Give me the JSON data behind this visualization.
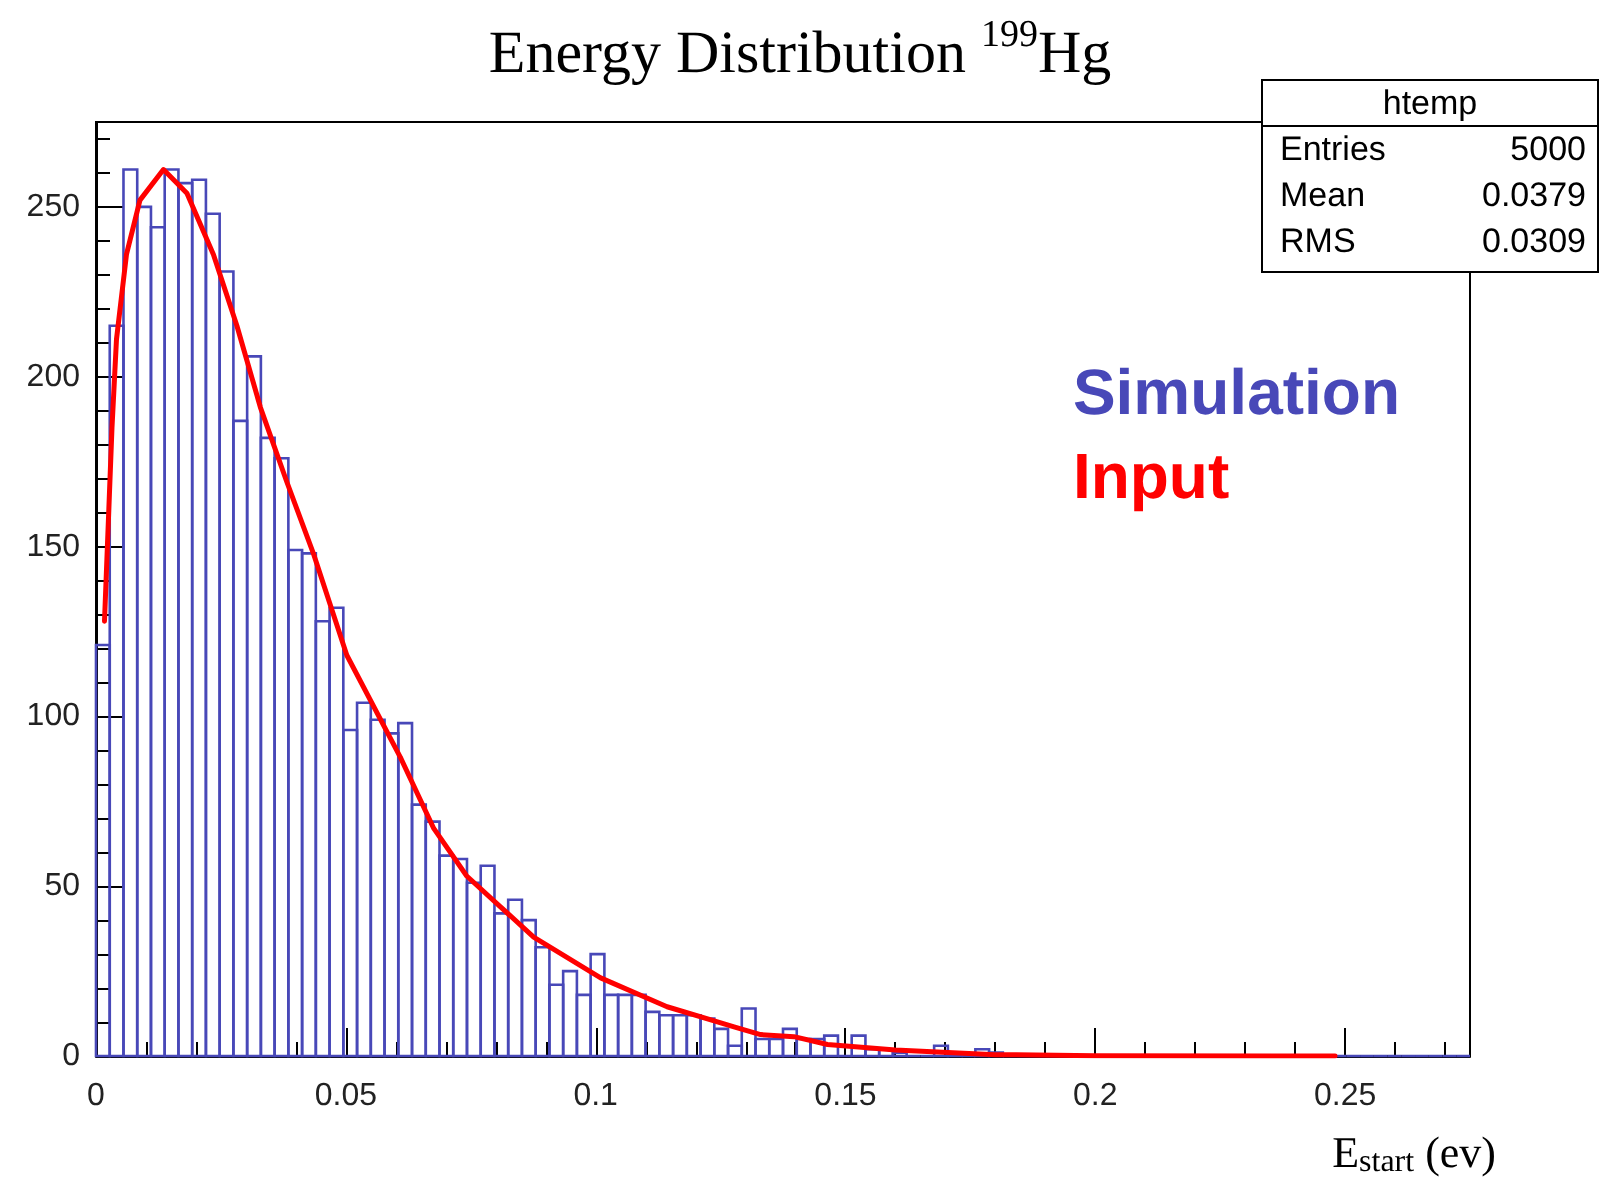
{
  "chart_data": {
    "type": "histogram",
    "title": "Energy Distribution $^{199}$Hg",
    "xlabel": "E$_{start}$ (ev)",
    "annotations": [
      "htemp",
      "Entries",
      "5000",
      "Mean",
      "0.0379",
      "RMS",
      "0.0309"
    ],
    "xlim": [
      0,
      0.275
    ],
    "xticks": [
      0,
      0.05,
      0.1,
      0.15,
      0.2,
      0.25
    ],
    "ylim": [
      0,
      275
    ],
    "yticks": [
      0,
      50,
      100,
      150,
      200,
      250
    ],
    "grid": false,
    "legend": "right",
    "series": [
      {
        "name": "Simulation",
        "color": "#4848b8",
        "bins": [
          0,
          0.00275,
          0.0055,
          0.00825,
          0.011,
          0.01375,
          0.0165,
          0.01925,
          0.022,
          0.02475,
          0.0275,
          0.03025,
          0.033,
          0.03575,
          0.0385,
          0.04125,
          0.044,
          0.04675,
          0.0495,
          0.05225,
          0.055,
          0.05775,
          0.0605,
          0.06325,
          0.066,
          0.06875,
          0.0715,
          0.07425,
          0.077,
          0.07975,
          0.0825,
          0.08525,
          0.088,
          0.09075,
          0.0935,
          0.09625,
          0.099,
          0.10175,
          0.1045,
          0.10725,
          0.11,
          0.11275,
          0.1155,
          0.11825,
          0.121,
          0.12375,
          0.1265,
          0.12925,
          0.132,
          0.13475,
          0.1375,
          0.14025,
          0.143,
          0.14575,
          0.1485,
          0.15125,
          0.154,
          0.15675,
          0.1595,
          0.16225,
          0.165,
          0.16775,
          0.1705,
          0.17325,
          0.176,
          0.17875,
          0.1815,
          0.18425,
          0.187,
          0.18975,
          0.1925,
          0.19525,
          0.198,
          0.20075,
          0.2035,
          0.20625,
          0.209,
          0.21175,
          0.2145,
          0.21725,
          0.22,
          0.22275,
          0.2255,
          0.22825,
          0.231,
          0.23375,
          0.2365,
          0.23925,
          0.242,
          0.24475,
          0.2475,
          0.25025,
          0.253,
          0.25575,
          0.2585,
          0.26125,
          0.264,
          0.26675,
          0.2695,
          0.27225,
          0.275
        ],
        "values": [
          121,
          215,
          261,
          250,
          244,
          261,
          257,
          258,
          248,
          231,
          187,
          206,
          182,
          176,
          149,
          148,
          128,
          132,
          96,
          104,
          99,
          95,
          98,
          74,
          69,
          59,
          58,
          51,
          56,
          42,
          46,
          40,
          32,
          21,
          25,
          18,
          30,
          18,
          18,
          18,
          13,
          12,
          12,
          12,
          11,
          8,
          3,
          14,
          5,
          5,
          8,
          5,
          5,
          6,
          0,
          6,
          2,
          2,
          1,
          0,
          0,
          3,
          1,
          0,
          2,
          1,
          0,
          0,
          0,
          0,
          0,
          0,
          0,
          0,
          0,
          0,
          0,
          0,
          0,
          0,
          0,
          0,
          0,
          0,
          0,
          0,
          0,
          0,
          0,
          0,
          0,
          0,
          0,
          0,
          0,
          0,
          0,
          0,
          0,
          0
        ]
      },
      {
        "type": "line",
        "name": "Input",
        "color": "#ff0000",
        "marker": "none",
        "line_style": "solid",
        "x": [
          0.0017,
          0.0032,
          0.0041,
          0.0061,
          0.0088,
          0.0135,
          0.0182,
          0.0235,
          0.0282,
          0.0329,
          0.0382,
          0.0435,
          0.0502,
          0.0609,
          0.0676,
          0.0742,
          0.0809,
          0.0876,
          0.101,
          0.1143,
          0.1277,
          0.133,
          0.1397,
          0.1464,
          0.16,
          0.18,
          0.2,
          0.248
        ],
        "values": [
          128,
          185,
          211,
          236,
          252,
          261,
          254,
          236,
          215,
          191,
          169,
          148,
          118,
          88,
          67,
          53,
          44,
          35,
          23,
          14.5,
          8.6,
          6.3,
          5.7,
          3.4,
          1.8,
          0.4,
          0.1,
          0
        ]
      }
    ]
  }
}
